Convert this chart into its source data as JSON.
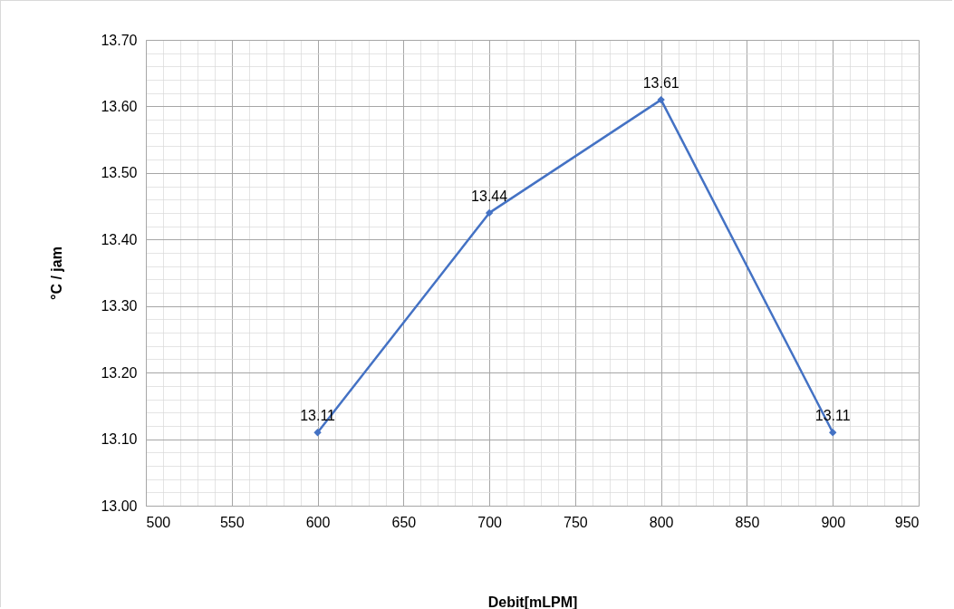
{
  "chart_data": {
    "type": "line",
    "xlabel": "Debit[mLPM]",
    "ylabel": "°C / jam",
    "x": [
      600,
      700,
      800,
      900
    ],
    "series": [
      {
        "color": "#4472c4",
        "values": [
          13.11,
          13.44,
          13.61,
          13.11
        ]
      }
    ],
    "xlim": [
      500,
      950
    ],
    "xticks": [
      500,
      550,
      600,
      650,
      700,
      750,
      800,
      850,
      900,
      950
    ],
    "ylim": [
      13.0,
      13.7
    ],
    "yticks": [
      {
        "value": 13.0,
        "label": "13.00"
      },
      {
        "value": 13.1,
        "label": "13.10"
      },
      {
        "value": 13.2,
        "label": "13.20"
      },
      {
        "value": 13.3,
        "label": "13.30"
      },
      {
        "value": 13.4,
        "label": "13.40"
      },
      {
        "value": 13.5,
        "label": "13.50"
      },
      {
        "value": 13.6,
        "label": "13.60"
      },
      {
        "value": 13.7,
        "label": "13.70"
      }
    ],
    "grid": true,
    "marker": "diamond",
    "line_style": "solid",
    "data_labels": true,
    "legend": false
  }
}
